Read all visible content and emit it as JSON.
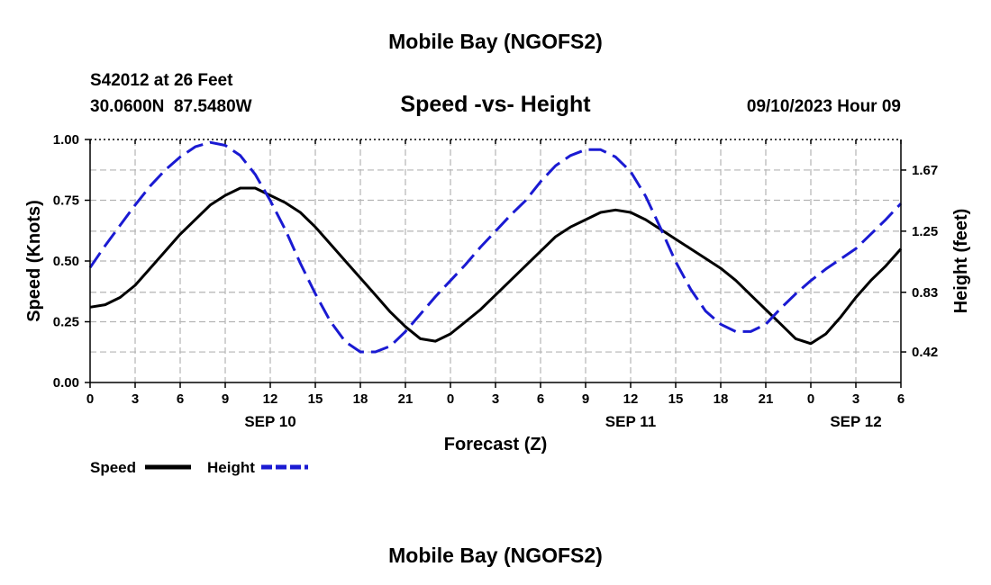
{
  "page": {
    "top_title": "Mobile Bay (NGOFS2)",
    "bottom_title": "Mobile Bay (NGOFS2)"
  },
  "header": {
    "station": "S42012 at 26 Feet",
    "coords": "30.0600N  87.5480W",
    "subtitle": "Speed -vs- Height",
    "datetime": "09/10/2023 Hour 09"
  },
  "chart_data": {
    "type": "line",
    "title": "Speed -vs- Height",
    "xlabel": "Forecast (Z)",
    "ylabel": "Speed (Knots)",
    "y2label": "Height (feet)",
    "x_range_hours": [
      0,
      54
    ],
    "ylim": [
      0,
      1.0
    ],
    "y2lim": [
      0.21,
      1.88
    ],
    "grid": true,
    "x_tick_hours": [
      0,
      3,
      6,
      9,
      12,
      15,
      18,
      21,
      24,
      27,
      30,
      33,
      36,
      39,
      42,
      45,
      48,
      51,
      54
    ],
    "x_tick_labels": [
      "0",
      "3",
      "6",
      "9",
      "12",
      "15",
      "18",
      "21",
      "0",
      "3",
      "6",
      "9",
      "12",
      "15",
      "18",
      "21",
      "0",
      "3",
      "6"
    ],
    "date_labels": [
      {
        "hour": 12,
        "label": "SEP 10"
      },
      {
        "hour": 36,
        "label": "SEP 11"
      },
      {
        "hour": 51,
        "label": "SEP 12"
      }
    ],
    "y_ticks": [
      0.0,
      0.25,
      0.5,
      0.75,
      1.0
    ],
    "y_tick_labels": [
      "0.00",
      "0.25",
      "0.50",
      "0.75",
      "1.00"
    ],
    "y2_ticks": [
      0.42,
      0.83,
      1.25,
      1.67
    ],
    "y2_tick_labels": [
      "0.42",
      "0.83",
      "1.25",
      "1.67"
    ],
    "series": [
      {
        "name": "Speed",
        "axis": "left",
        "color": "#000000",
        "dash": "solid",
        "x": [
          0,
          1,
          2,
          3,
          4,
          5,
          6,
          7,
          8,
          9,
          10,
          11,
          12,
          13,
          14,
          15,
          16,
          17,
          18,
          19,
          20,
          21,
          22,
          23,
          24,
          25,
          26,
          27,
          28,
          29,
          30,
          31,
          32,
          33,
          34,
          35,
          36,
          37,
          38,
          39,
          40,
          41,
          42,
          43,
          44,
          45,
          46,
          47,
          48,
          49,
          50,
          51,
          52,
          53,
          54
        ],
        "values": [
          0.31,
          0.32,
          0.35,
          0.4,
          0.47,
          0.54,
          0.61,
          0.67,
          0.73,
          0.77,
          0.8,
          0.8,
          0.77,
          0.74,
          0.7,
          0.64,
          0.57,
          0.5,
          0.43,
          0.36,
          0.29,
          0.23,
          0.18,
          0.17,
          0.2,
          0.25,
          0.3,
          0.36,
          0.42,
          0.48,
          0.54,
          0.6,
          0.64,
          0.67,
          0.7,
          0.71,
          0.7,
          0.67,
          0.63,
          0.59,
          0.55,
          0.51,
          0.47,
          0.42,
          0.36,
          0.3,
          0.24,
          0.18,
          0.16,
          0.2,
          0.27,
          0.35,
          0.42,
          0.48,
          0.55
        ]
      },
      {
        "name": "Height",
        "axis": "right",
        "color": "#1a1ad2",
        "dash": "dashed",
        "x": [
          0,
          1,
          2,
          3,
          4,
          5,
          6,
          7,
          8,
          9,
          10,
          11,
          12,
          13,
          14,
          15,
          16,
          17,
          18,
          19,
          20,
          21,
          22,
          23,
          24,
          25,
          26,
          27,
          28,
          29,
          30,
          31,
          32,
          33,
          34,
          35,
          36,
          37,
          38,
          39,
          40,
          41,
          42,
          43,
          44,
          45,
          46,
          47,
          48,
          49,
          50,
          51,
          52,
          53,
          54
        ],
        "values": [
          1.0,
          1.15,
          1.29,
          1.43,
          1.56,
          1.67,
          1.76,
          1.83,
          1.86,
          1.84,
          1.77,
          1.64,
          1.46,
          1.26,
          1.03,
          0.82,
          0.63,
          0.49,
          0.42,
          0.42,
          0.46,
          0.56,
          0.68,
          0.8,
          0.91,
          1.02,
          1.14,
          1.25,
          1.36,
          1.46,
          1.59,
          1.7,
          1.77,
          1.81,
          1.81,
          1.76,
          1.66,
          1.49,
          1.27,
          1.04,
          0.85,
          0.7,
          0.61,
          0.56,
          0.56,
          0.61,
          0.72,
          0.82,
          0.91,
          0.99,
          1.06,
          1.13,
          1.23,
          1.33,
          1.44
        ]
      }
    ],
    "legend": [
      {
        "label": "Speed",
        "color": "#000000",
        "dash": "solid"
      },
      {
        "label": "Height",
        "color": "#1a1ad2",
        "dash": "dashed"
      }
    ],
    "legend_position": "bottom-left"
  }
}
